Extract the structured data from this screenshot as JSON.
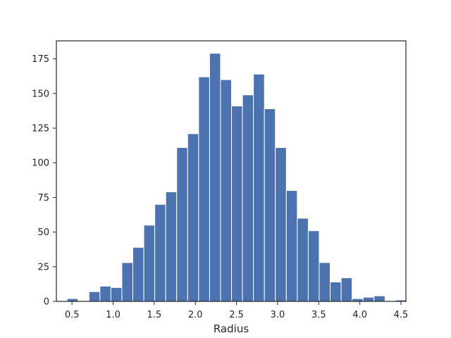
{
  "chart_data": {
    "type": "bar",
    "subtype": "histogram",
    "title": "",
    "xlabel": "Radius",
    "ylabel": "",
    "xlim": [
      0.31,
      4.56
    ],
    "ylim": [
      0,
      188
    ],
    "xticks": [
      0.5,
      1.0,
      1.5,
      2.0,
      2.5,
      3.0,
      3.5,
      4.0,
      4.5
    ],
    "xtick_labels": [
      "0.5",
      "1.0",
      "1.5",
      "2.0",
      "2.5",
      "3.0",
      "3.5",
      "4.0",
      "4.5"
    ],
    "yticks": [
      0,
      25,
      50,
      75,
      100,
      125,
      150,
      175
    ],
    "ytick_labels": [
      "0",
      "25",
      "50",
      "75",
      "100",
      "125",
      "150",
      "175"
    ],
    "bar_color": "#4c72b0",
    "bar_edge_color": "#ffffff",
    "grid": false,
    "bin_start": 0.44,
    "bin_width": 0.1333,
    "bin_values": [
      2,
      0,
      7,
      11,
      10,
      28,
      39,
      55,
      70,
      79,
      111,
      121,
      162,
      179,
      160,
      141,
      149,
      164,
      139,
      111,
      80,
      60,
      51,
      28,
      14,
      17,
      2,
      3,
      4,
      0,
      1
    ]
  }
}
